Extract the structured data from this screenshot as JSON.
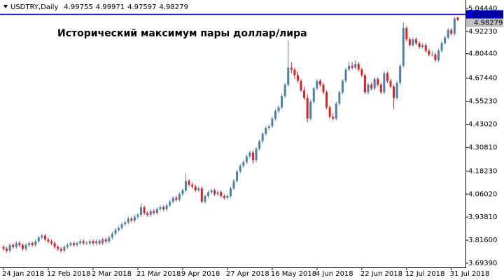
{
  "chart_data": {
    "type": "candlestick",
    "title": "USDTRY,Daily",
    "annotation": "Исторический максимум пары доллар/лира",
    "up_color": "#4a7fb0",
    "down_color": "#e0201b",
    "grid": false,
    "price_line": {
      "value": 5.01273,
      "color": "#0000cc"
    },
    "ylim": [
      3.6716,
      5.0815
    ],
    "yticks": [
      {
        "value": 5.0444,
        "label": "5.04440"
      },
      {
        "value": 4.9223,
        "label": "4.92230"
      },
      {
        "value": 4.8044,
        "label": "4.80440"
      },
      {
        "value": 4.6744,
        "label": "4.67440"
      },
      {
        "value": 4.5523,
        "label": "4.55230"
      },
      {
        "value": 4.4302,
        "label": "4.43020"
      },
      {
        "value": 4.3081,
        "label": "4.30810"
      },
      {
        "value": 4.1823,
        "label": "4.18230"
      },
      {
        "value": 4.0602,
        "label": "4.06020"
      },
      {
        "value": 3.9381,
        "label": "3.93810"
      },
      {
        "value": 3.816,
        "label": "3.81600"
      },
      {
        "value": 3.6939,
        "label": "3.69390"
      }
    ],
    "categories": [
      "24 Jan 2018",
      null,
      null,
      null,
      null,
      null,
      null,
      null,
      null,
      null,
      null,
      null,
      null,
      null,
      "12 Feb 2018",
      null,
      null,
      null,
      null,
      null,
      null,
      null,
      null,
      null,
      null,
      null,
      null,
      null,
      "2 Mar 2018",
      null,
      null,
      null,
      null,
      null,
      null,
      null,
      null,
      null,
      null,
      null,
      null,
      null,
      "21 Mar 2018",
      null,
      null,
      null,
      null,
      null,
      null,
      null,
      null,
      null,
      null,
      null,
      null,
      null,
      "9 Apr 2018",
      null,
      null,
      null,
      null,
      null,
      null,
      null,
      null,
      null,
      null,
      null,
      null,
      null,
      "27 Apr 2018",
      null,
      null,
      null,
      null,
      null,
      null,
      null,
      null,
      null,
      null,
      null,
      null,
      null,
      "16 May 2018",
      null,
      null,
      null,
      null,
      null,
      null,
      null,
      null,
      null,
      null,
      null,
      null,
      null,
      "4 Jun 2018",
      null,
      null,
      null,
      null,
      null,
      null,
      null,
      null,
      null,
      null,
      null,
      null,
      null,
      "22 Jun 2018",
      null,
      null,
      null,
      null,
      null,
      null,
      null,
      null,
      null,
      null,
      null,
      null,
      null,
      "12 Jul 2018",
      null,
      null,
      null,
      null,
      null,
      null,
      null,
      null,
      null,
      null,
      null,
      null,
      null,
      "31 Jul 2018",
      null,
      null
    ],
    "ohlc": [
      [
        3.78,
        3.79,
        3.76,
        3.77
      ],
      [
        3.77,
        3.78,
        3.75,
        3.76
      ],
      [
        3.76,
        3.8,
        3.75,
        3.79
      ],
      [
        3.79,
        3.8,
        3.77,
        3.78
      ],
      [
        3.78,
        3.81,
        3.77,
        3.8
      ],
      [
        3.8,
        3.81,
        3.78,
        3.79
      ],
      [
        3.79,
        3.8,
        3.76,
        3.77
      ],
      [
        3.77,
        3.8,
        3.76,
        3.79
      ],
      [
        3.79,
        3.81,
        3.78,
        3.8
      ],
      [
        3.8,
        3.81,
        3.78,
        3.79
      ],
      [
        3.79,
        3.82,
        3.78,
        3.81
      ],
      [
        3.81,
        3.84,
        3.8,
        3.83
      ],
      [
        3.83,
        3.85,
        3.82,
        3.84
      ],
      [
        3.84,
        3.85,
        3.81,
        3.82
      ],
      [
        3.82,
        3.83,
        3.8,
        3.81
      ],
      [
        3.81,
        3.82,
        3.79,
        3.8
      ],
      [
        3.8,
        3.81,
        3.77,
        3.78
      ],
      [
        3.78,
        3.79,
        3.76,
        3.77
      ],
      [
        3.77,
        3.78,
        3.75,
        3.76
      ],
      [
        3.76,
        3.79,
        3.75,
        3.78
      ],
      [
        3.78,
        3.8,
        3.77,
        3.79
      ],
      [
        3.79,
        3.81,
        3.78,
        3.8
      ],
      [
        3.8,
        3.81,
        3.78,
        3.79
      ],
      [
        3.79,
        3.81,
        3.78,
        3.8
      ],
      [
        3.8,
        3.82,
        3.79,
        3.81
      ],
      [
        3.81,
        3.82,
        3.79,
        3.8
      ],
      [
        3.8,
        3.81,
        3.79,
        3.8
      ],
      [
        3.8,
        3.82,
        3.79,
        3.81
      ],
      [
        3.81,
        3.82,
        3.79,
        3.8
      ],
      [
        3.8,
        3.82,
        3.79,
        3.81
      ],
      [
        3.81,
        3.82,
        3.79,
        3.8
      ],
      [
        3.8,
        3.83,
        3.79,
        3.82
      ],
      [
        3.82,
        3.83,
        3.8,
        3.81
      ],
      [
        3.81,
        3.84,
        3.8,
        3.83
      ],
      [
        3.83,
        3.86,
        3.82,
        3.85
      ],
      [
        3.85,
        3.88,
        3.84,
        3.87
      ],
      [
        3.87,
        3.89,
        3.86,
        3.88
      ],
      [
        3.88,
        3.91,
        3.87,
        3.9
      ],
      [
        3.9,
        3.92,
        3.89,
        3.91
      ],
      [
        3.91,
        3.94,
        3.9,
        3.93
      ],
      [
        3.93,
        3.94,
        3.91,
        3.92
      ],
      [
        3.92,
        3.95,
        3.91,
        3.94
      ],
      [
        3.94,
        3.96,
        3.93,
        3.95
      ],
      [
        3.95,
        4.01,
        3.94,
        3.99
      ],
      [
        3.99,
        4.0,
        3.95,
        3.96
      ],
      [
        3.96,
        3.97,
        3.94,
        3.95
      ],
      [
        3.95,
        3.98,
        3.94,
        3.97
      ],
      [
        3.97,
        3.98,
        3.95,
        3.96
      ],
      [
        3.96,
        3.99,
        3.95,
        3.98
      ],
      [
        3.98,
        4.0,
        3.97,
        3.99
      ],
      [
        3.99,
        4.0,
        3.97,
        3.98
      ],
      [
        3.98,
        4.01,
        3.97,
        4.0
      ],
      [
        4.0,
        4.03,
        3.99,
        4.02
      ],
      [
        4.02,
        4.05,
        4.01,
        4.04
      ],
      [
        4.04,
        4.05,
        4.02,
        4.03
      ],
      [
        4.03,
        4.07,
        4.02,
        4.06
      ],
      [
        4.06,
        4.09,
        4.05,
        4.08
      ],
      [
        4.08,
        4.17,
        4.07,
        4.13
      ],
      [
        4.13,
        4.14,
        4.1,
        4.11
      ],
      [
        4.11,
        4.12,
        4.09,
        4.1
      ],
      [
        4.1,
        4.11,
        4.07,
        4.08
      ],
      [
        4.08,
        4.1,
        4.07,
        4.09
      ],
      [
        4.09,
        4.1,
        4.01,
        4.02
      ],
      [
        4.02,
        4.06,
        4.01,
        4.05
      ],
      [
        4.05,
        4.08,
        4.04,
        4.07
      ],
      [
        4.07,
        4.09,
        4.06,
        4.08
      ],
      [
        4.08,
        4.09,
        4.05,
        4.06
      ],
      [
        4.06,
        4.08,
        4.05,
        4.07
      ],
      [
        4.07,
        4.08,
        4.04,
        4.05
      ],
      [
        4.05,
        4.06,
        4.03,
        4.04
      ],
      [
        4.04,
        4.06,
        4.03,
        4.05
      ],
      [
        4.05,
        4.1,
        4.04,
        4.09
      ],
      [
        4.09,
        4.14,
        4.08,
        4.13
      ],
      [
        4.13,
        4.19,
        4.12,
        4.18
      ],
      [
        4.18,
        4.22,
        4.17,
        4.21
      ],
      [
        4.21,
        4.24,
        4.2,
        4.23
      ],
      [
        4.23,
        4.27,
        4.22,
        4.26
      ],
      [
        4.26,
        4.29,
        4.25,
        4.28
      ],
      [
        4.28,
        4.29,
        4.22,
        4.24
      ],
      [
        4.24,
        4.31,
        4.23,
        4.3
      ],
      [
        4.3,
        4.35,
        4.29,
        4.34
      ],
      [
        4.34,
        4.39,
        4.33,
        4.38
      ],
      [
        4.38,
        4.42,
        4.37,
        4.41
      ],
      [
        4.41,
        4.43,
        4.4,
        4.42
      ],
      [
        4.42,
        4.47,
        4.41,
        4.46
      ],
      [
        4.46,
        4.51,
        4.45,
        4.5
      ],
      [
        4.5,
        4.53,
        4.49,
        4.52
      ],
      [
        4.52,
        4.59,
        4.51,
        4.58
      ],
      [
        4.58,
        4.65,
        4.57,
        4.64
      ],
      [
        4.64,
        4.92,
        4.63,
        4.73
      ],
      [
        4.73,
        4.76,
        4.7,
        4.72
      ],
      [
        4.72,
        4.73,
        4.67,
        4.69
      ],
      [
        4.69,
        4.71,
        4.65,
        4.66
      ],
      [
        4.66,
        4.67,
        4.6,
        4.61
      ],
      [
        4.61,
        4.63,
        4.56,
        4.57
      ],
      [
        4.57,
        4.59,
        4.44,
        4.46
      ],
      [
        4.46,
        4.56,
        4.45,
        4.55
      ],
      [
        4.55,
        4.63,
        4.54,
        4.62
      ],
      [
        4.62,
        4.67,
        4.61,
        4.66
      ],
      [
        4.66,
        4.67,
        4.63,
        4.64
      ],
      [
        4.64,
        4.65,
        4.59,
        4.6
      ],
      [
        4.6,
        4.61,
        4.51,
        4.52
      ],
      [
        4.52,
        4.53,
        4.46,
        4.47
      ],
      [
        4.47,
        4.49,
        4.45,
        4.46
      ],
      [
        4.46,
        4.55,
        4.45,
        4.54
      ],
      [
        4.54,
        4.61,
        4.53,
        4.6
      ],
      [
        4.6,
        4.67,
        4.59,
        4.66
      ],
      [
        4.66,
        4.73,
        4.65,
        4.72
      ],
      [
        4.72,
        4.76,
        4.71,
        4.74
      ],
      [
        4.74,
        4.76,
        4.72,
        4.73
      ],
      [
        4.73,
        4.77,
        4.72,
        4.75
      ],
      [
        4.75,
        4.76,
        4.71,
        4.72
      ],
      [
        4.72,
        4.73,
        4.68,
        4.69
      ],
      [
        4.69,
        4.7,
        4.59,
        4.6
      ],
      [
        4.6,
        4.65,
        4.59,
        4.64
      ],
      [
        4.64,
        4.65,
        4.61,
        4.62
      ],
      [
        4.62,
        4.68,
        4.61,
        4.67
      ],
      [
        4.67,
        4.68,
        4.63,
        4.64
      ],
      [
        4.64,
        4.65,
        4.59,
        4.6
      ],
      [
        4.6,
        4.71,
        4.59,
        4.7
      ],
      [
        4.7,
        4.71,
        4.65,
        4.66
      ],
      [
        4.66,
        4.67,
        4.62,
        4.63
      ],
      [
        4.63,
        4.64,
        4.51,
        4.57
      ],
      [
        4.57,
        4.66,
        4.56,
        4.65
      ],
      [
        4.65,
        4.75,
        4.64,
        4.74
      ],
      [
        4.74,
        4.97,
        4.73,
        4.94
      ],
      [
        4.94,
        4.95,
        4.87,
        4.88
      ],
      [
        4.88,
        4.89,
        4.84,
        4.85
      ],
      [
        4.85,
        4.89,
        4.84,
        4.88
      ],
      [
        4.88,
        4.89,
        4.85,
        4.86
      ],
      [
        4.86,
        4.87,
        4.83,
        4.84
      ],
      [
        4.84,
        4.86,
        4.83,
        4.85
      ],
      [
        4.85,
        4.86,
        4.81,
        4.82
      ],
      [
        4.82,
        4.83,
        4.79,
        4.8
      ],
      [
        4.8,
        4.82,
        4.79,
        4.8
      ],
      [
        4.8,
        4.81,
        4.76,
        4.77
      ],
      [
        4.77,
        4.83,
        4.76,
        4.82
      ],
      [
        4.82,
        4.87,
        4.81,
        4.86
      ],
      [
        4.86,
        4.9,
        4.85,
        4.89
      ],
      [
        4.89,
        4.94,
        4.88,
        4.93
      ],
      [
        4.93,
        4.94,
        4.9,
        4.91
      ],
      [
        4.91,
        5.0,
        4.9,
        4.99
      ],
      [
        4.99755,
        4.99971,
        4.97597,
        4.98279
      ]
    ]
  }
}
